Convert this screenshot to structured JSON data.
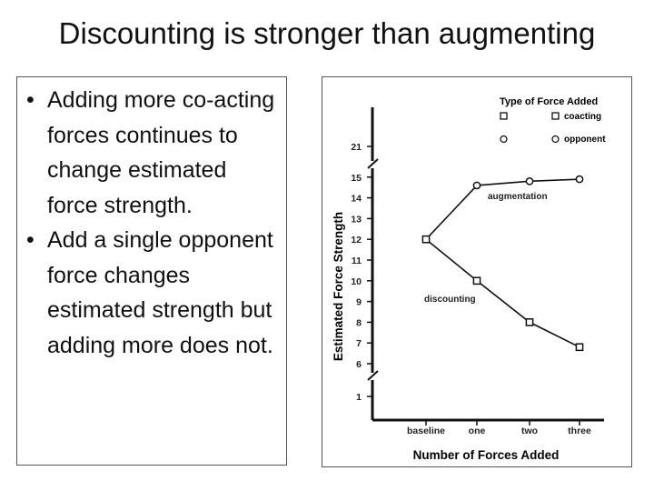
{
  "slide": {
    "title": "Discounting is stronger than augmenting"
  },
  "bullets": [
    "Adding more co-acting forces continues to change estimated force strength.",
    "Add a single opponent force changes estimated strength but adding more does not."
  ],
  "bullet_symbol": "•",
  "chart_data": {
    "type": "line",
    "x_categories": [
      "baseline",
      "one",
      "two",
      "three"
    ],
    "xlabel": "Number of Forces Added",
    "ylabel": "Estimated Force Strength",
    "y_ticks": [
      "1",
      "6",
      "7",
      "8",
      "9",
      "10",
      "11",
      "12",
      "13",
      "14",
      "15",
      "21"
    ],
    "axis_breaks": true,
    "legend": {
      "title": "Type of Force Added",
      "items": [
        {
          "label": "coacting",
          "marker": "square"
        },
        {
          "label": "opponent",
          "marker": "circle"
        }
      ],
      "position": "top-right"
    },
    "series": [
      {
        "name": "augmentation",
        "values": [
          12,
          14.6,
          14.8,
          14.9
        ],
        "marker": "circle"
      },
      {
        "name": "discounting",
        "values": [
          12,
          10,
          8,
          6.8
        ],
        "marker": "square"
      }
    ]
  }
}
